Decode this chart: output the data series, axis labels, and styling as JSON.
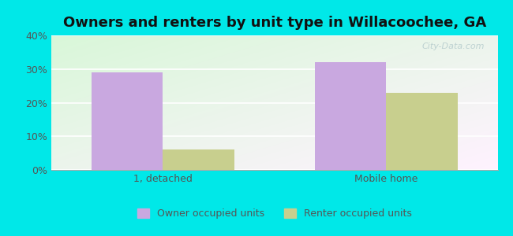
{
  "title": "Owners and renters by unit type in Willacoochee, GA",
  "categories": [
    "1, detached",
    "Mobile home"
  ],
  "owner_values": [
    29,
    32
  ],
  "renter_values": [
    6,
    23
  ],
  "owner_color": "#c9a8e0",
  "renter_color": "#c8cf8e",
  "figure_bg": "#00e8e8",
  "ylim": [
    0,
    40
  ],
  "yticks": [
    0,
    10,
    20,
    30,
    40
  ],
  "ytick_labels": [
    "0%",
    "10%",
    "20%",
    "30%",
    "40%"
  ],
  "bar_width": 0.32,
  "legend_owner": "Owner occupied units",
  "legend_renter": "Renter occupied units",
  "title_fontsize": 13,
  "watermark": "City-Data.com"
}
